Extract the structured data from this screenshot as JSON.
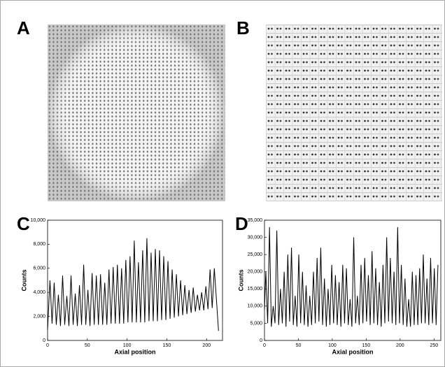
{
  "panels": [
    {
      "label": "A"
    },
    {
      "label": "B"
    }
  ],
  "chart_data": [
    {
      "type": "line",
      "panel_label": "C",
      "xlabel": "Axial position",
      "ylabel": "Counts",
      "xlim": [
        0,
        220
      ],
      "xticks": [
        0,
        50,
        100,
        150,
        200
      ],
      "ylim": [
        0,
        10000
      ],
      "yticks": [
        0,
        {
          "value": 2000,
          "label": "2,000"
        },
        {
          "value": 4000,
          "label": "4,000"
        },
        {
          "value": 6000,
          "label": "6,000"
        },
        {
          "value": 8000,
          "label": "8,000"
        },
        {
          "value": 10000,
          "label": "10,000"
        }
      ],
      "color": "#000000",
      "x": [
        0,
        3,
        5.65,
        8.3,
        10.95,
        13.6,
        16.25,
        18.9,
        21.55,
        24.2,
        26.85,
        29.5,
        32.15,
        34.8,
        37.45,
        40.1,
        42.75,
        45.4,
        48.05,
        50.7,
        53.35,
        56,
        58.65,
        61.3,
        63.95,
        66.6,
        69.25,
        71.9,
        74.55,
        77.2,
        79.85,
        82.5,
        85.15,
        87.8,
        90.45,
        93.1,
        95.75,
        98.4,
        101.05,
        103.7,
        106.35,
        109,
        111.65,
        114.3,
        116.95,
        119.6,
        122.25,
        124.9,
        127.55,
        130.2,
        132.85,
        135.5,
        138.15,
        140.8,
        143.45,
        146.1,
        148.75,
        151.4,
        154.05,
        156.7,
        159.35,
        162,
        164.65,
        167.3,
        169.95,
        172.6,
        175.25,
        177.9,
        180.55,
        183.2,
        185.85,
        188.5,
        191.15,
        193.8,
        196.45,
        199.1,
        201.75,
        204.4,
        207.05,
        209.7,
        215
      ],
      "values": [
        900,
        5000,
        1400,
        4800,
        1300,
        3800,
        1200,
        5400,
        1300,
        3700,
        1200,
        5400,
        1300,
        3900,
        1200,
        4600,
        1300,
        6300,
        1300,
        4200,
        1200,
        5600,
        1300,
        5400,
        1300,
        5500,
        1300,
        4800,
        1300,
        5900,
        1400,
        6100,
        1400,
        6300,
        1400,
        6000,
        1400,
        6700,
        1500,
        7000,
        1500,
        8300,
        1500,
        6500,
        1500,
        7500,
        1500,
        8500,
        1600,
        7300,
        1600,
        7600,
        1600,
        7500,
        1700,
        7000,
        1700,
        6600,
        1800,
        5900,
        1900,
        5500,
        2000,
        5000,
        2100,
        4600,
        2200,
        4200,
        2300,
        4400,
        2400,
        3800,
        2500,
        4000,
        2500,
        4500,
        2600,
        5900,
        2700,
        6000,
        800
      ]
    },
    {
      "type": "line",
      "panel_label": "D",
      "xlabel": "Axial position",
      "ylabel": "Counts",
      "xlim": [
        0,
        260
      ],
      "xticks": [
        0,
        50,
        100,
        150,
        200,
        250
      ],
      "ylim": [
        0,
        35000
      ],
      "yticks": [
        0,
        {
          "value": 5000,
          "label": "5,000"
        },
        {
          "value": 10000,
          "label": "10,000"
        },
        {
          "value": 15000,
          "label": "15,000"
        },
        {
          "value": 20000,
          "label": "20,000"
        },
        {
          "value": 25000,
          "label": "25,000"
        },
        {
          "value": 30000,
          "label": "30,000"
        },
        {
          "value": 35000,
          "label": "35,000"
        }
      ],
      "color": "#000000",
      "x": [
        0,
        2,
        4.7,
        7.4,
        10.1,
        12.8,
        15.5,
        18.2,
        20.9,
        23.6,
        26.3,
        29,
        31.7,
        34.4,
        37.1,
        39.8,
        42.5,
        45.2,
        47.9,
        50.6,
        53.3,
        56,
        58.7,
        61.4,
        64.1,
        66.8,
        69.5,
        72.2,
        74.9,
        77.6,
        80.3,
        83,
        85.7,
        88.4,
        91.1,
        93.8,
        96.5,
        99.2,
        101.9,
        104.6,
        107.3,
        110,
        112.7,
        115.4,
        118.1,
        120.8,
        123.5,
        126.2,
        128.9,
        131.6,
        134.3,
        137,
        139.7,
        142.4,
        145.1,
        147.8,
        150.5,
        153.2,
        155.9,
        158.6,
        161.3,
        164,
        166.7,
        169.4,
        172.1,
        174.8,
        177.5,
        180.2,
        182.9,
        185.6,
        188.3,
        191,
        193.7,
        196.4,
        199.1,
        201.8,
        204.5,
        207.2,
        209.9,
        212.6,
        215.3,
        218,
        220.7,
        223.4,
        226.1,
        228.8,
        231.5,
        234.2,
        236.9,
        239.6,
        242.3,
        245,
        247.7,
        250.4,
        253.1,
        255.8
      ],
      "values": [
        9000,
        20000,
        5000,
        33000,
        4000,
        10000,
        5000,
        32000,
        4500,
        15000,
        5000,
        20000,
        4000,
        25000,
        5500,
        27000,
        4500,
        13000,
        4000,
        25000,
        5000,
        20000,
        4500,
        16000,
        4000,
        13000,
        4500,
        20000,
        5000,
        24000,
        5500,
        27000,
        4500,
        18000,
        4000,
        15000,
        4500,
        22000,
        5000,
        19000,
        4500,
        17000,
        4000,
        22000,
        5000,
        21000,
        4500,
        12000,
        4000,
        30000,
        5000,
        13000,
        4500,
        22000,
        5000,
        24000,
        5500,
        19000,
        4500,
        26000,
        5000,
        21000,
        4500,
        17000,
        4000,
        22000,
        5000,
        30000,
        5500,
        24000,
        5000,
        20000,
        4500,
        33000,
        5000,
        22000,
        4500,
        18000,
        4000,
        12000,
        4000,
        20000,
        4500,
        19000,
        4500,
        21000,
        5000,
        25000,
        5000,
        18000,
        4500,
        24000,
        5000,
        21000,
        4500,
        22000
      ]
    }
  ]
}
